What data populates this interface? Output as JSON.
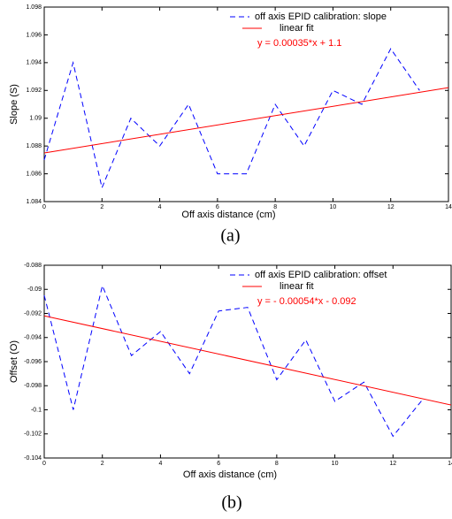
{
  "chart_data": [
    {
      "type": "line",
      "xlabel": "Off axis distance (cm)",
      "ylabel": "Slope (S)",
      "caption": "(a)",
      "annotation": "y = 0.00035*x + 1.1",
      "annotation_color": "#ff0000",
      "xlim": [
        0,
        14
      ],
      "xticks": [
        0,
        2,
        4,
        6,
        8,
        10,
        12,
        14
      ],
      "ylim": [
        1.084,
        1.098
      ],
      "yticks": [
        1.084,
        1.086,
        1.088,
        1.09,
        1.092,
        1.094,
        1.096,
        1.098
      ],
      "grid": false,
      "legend": "upper right",
      "series": [
        {
          "name": "off axis EPID calibration: slope",
          "color": "#0000ff",
          "dashed": true,
          "x": [
            0,
            1,
            2,
            3,
            4,
            5,
            6,
            7,
            8,
            9,
            10,
            11,
            12,
            13
          ],
          "values": [
            1.087,
            1.094,
            1.085,
            1.09,
            1.088,
            1.091,
            1.086,
            1.086,
            1.091,
            1.088,
            1.092,
            1.091,
            1.095,
            1.092
          ]
        },
        {
          "name": "linear fit",
          "color": "#ff0000",
          "dashed": false,
          "x": [
            0,
            14
          ],
          "values": [
            1.0875,
            1.0922
          ]
        }
      ]
    },
    {
      "type": "line",
      "xlabel": "Off axis distance (cm)",
      "ylabel": "Offset (O)",
      "caption": "(b)",
      "annotation": "y = - 0.00054*x - 0.092",
      "annotation_color": "#ff0000",
      "xlim": [
        0,
        14
      ],
      "xticks": [
        0,
        2,
        4,
        6,
        8,
        10,
        12,
        14
      ],
      "ylim": [
        -0.104,
        -0.088
      ],
      "yticks": [
        -0.104,
        -0.102,
        -0.1,
        -0.098,
        -0.096,
        -0.094,
        -0.092,
        -0.09,
        -0.088
      ],
      "grid": false,
      "legend": "upper right",
      "series": [
        {
          "name": "off axis EPID calibration: offset",
          "color": "#0000ff",
          "dashed": true,
          "x": [
            0,
            1,
            2,
            3,
            4,
            5,
            6,
            7,
            8,
            9,
            10,
            11,
            12,
            13
          ],
          "values": [
            -0.0905,
            -0.1,
            -0.0897,
            -0.0955,
            -0.0935,
            -0.097,
            -0.0918,
            -0.0915,
            -0.0975,
            -0.0942,
            -0.0993,
            -0.0977,
            -0.1022,
            -0.0992
          ]
        },
        {
          "name": "linear fit",
          "color": "#ff0000",
          "dashed": false,
          "x": [
            0,
            14
          ],
          "values": [
            -0.0922,
            -0.0996
          ]
        }
      ]
    }
  ]
}
